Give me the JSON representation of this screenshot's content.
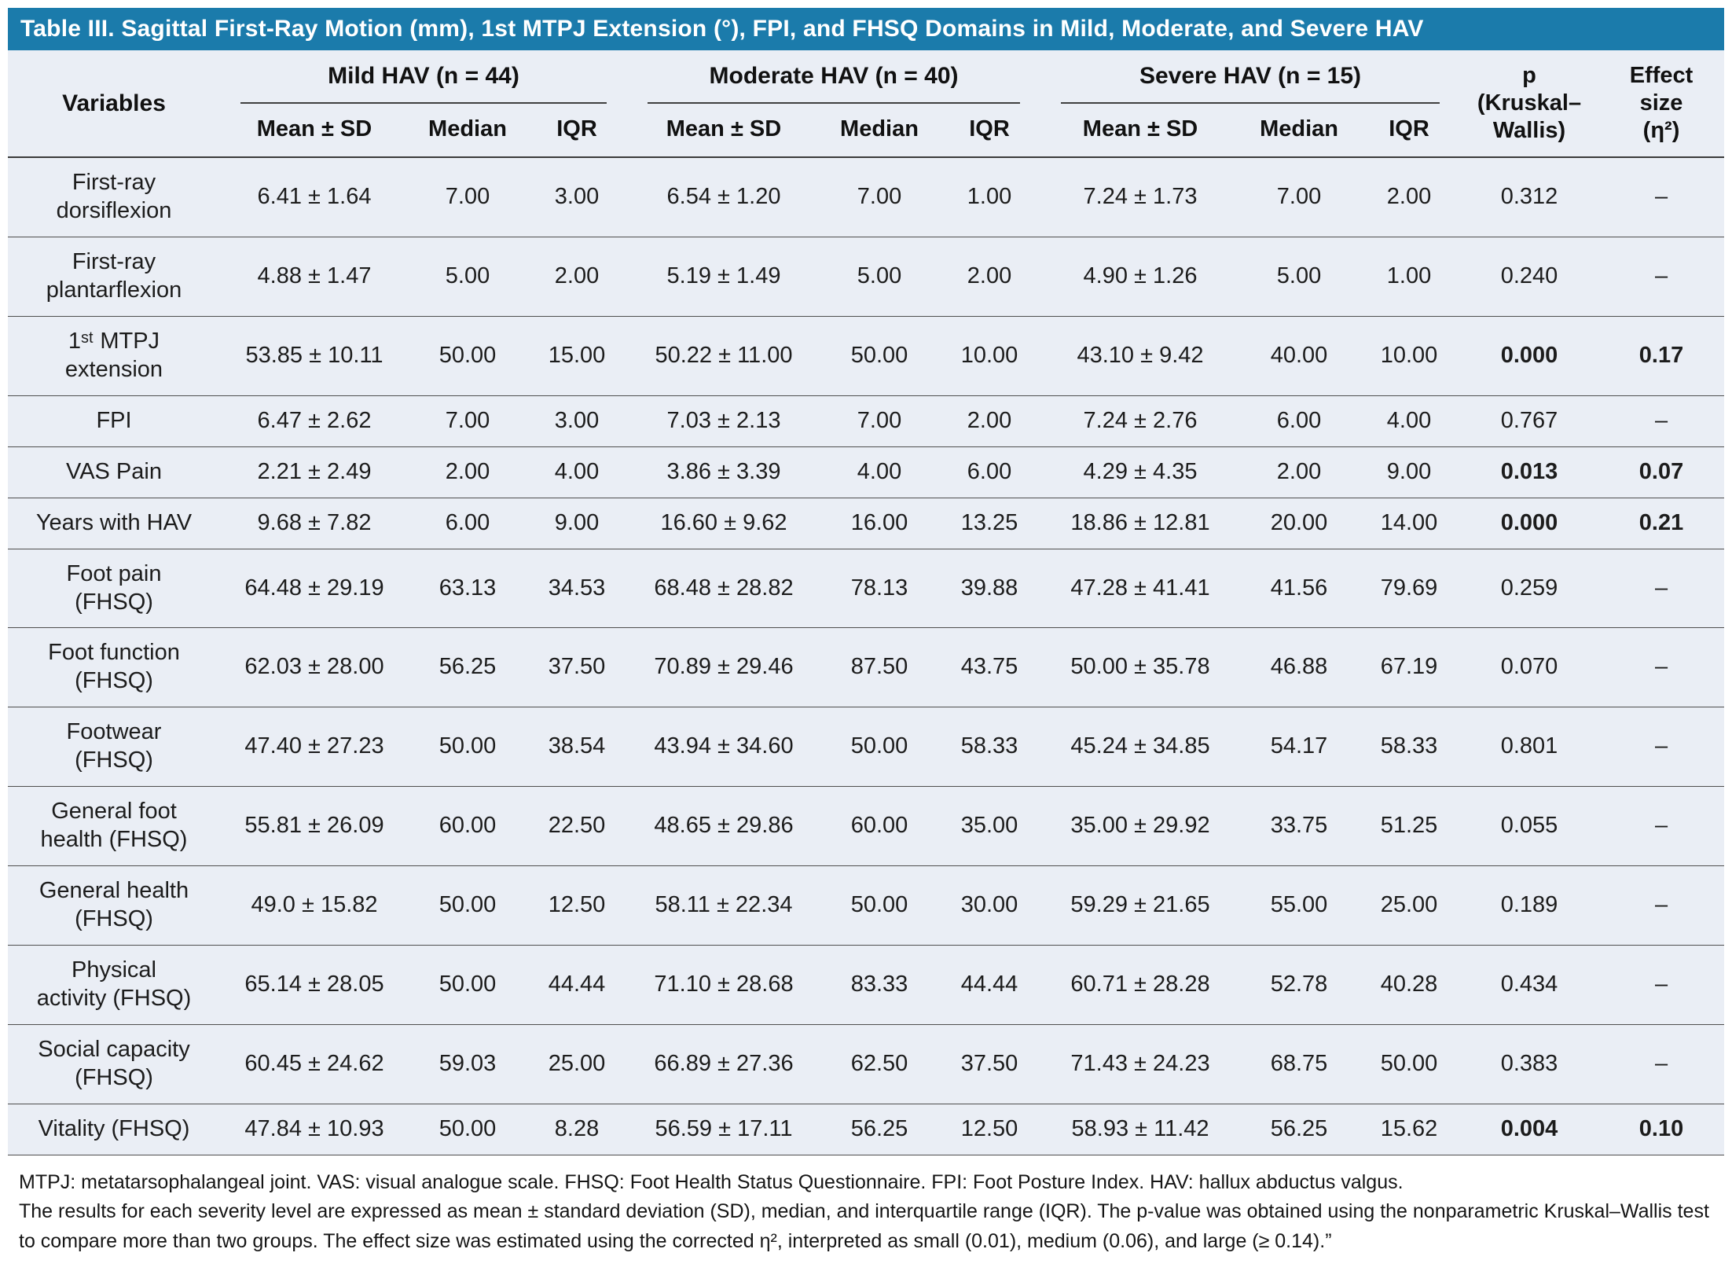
{
  "title": "Table III. Sagittal First-Ray Motion (mm), 1st MTPJ Extension (°), FPI, and FHSQ Domains in Mild, Moderate, and Severe HAV",
  "colors": {
    "header_bar": "#1b7bab",
    "table_background": "#eaeef5"
  },
  "table": {
    "variables_header": "Variables",
    "groups": [
      {
        "label": "Mild HAV (n = 44)"
      },
      {
        "label": "Moderate HAV (n = 40)"
      },
      {
        "label": "Severe HAV (n = 15)"
      }
    ],
    "sub_headers": [
      "Mean ± SD",
      "Median",
      "IQR"
    ],
    "p_header": "p\n(Kruskal–\nWallis)",
    "effect_header": "Effect\nsize\n(η²)",
    "rows": [
      {
        "variable": "First-ray\ndorsiflexion",
        "mild": [
          "6.41 ± 1.64",
          "7.00",
          "3.00"
        ],
        "moderate": [
          "6.54 ± 1.20",
          "7.00",
          "1.00"
        ],
        "severe": [
          "7.24 ± 1.73",
          "7.00",
          "2.00"
        ],
        "p": "0.312",
        "effect": "–",
        "significant": false
      },
      {
        "variable": "First-ray\nplantarflexion",
        "mild": [
          "4.88 ± 1.47",
          "5.00",
          "2.00"
        ],
        "moderate": [
          "5.19 ± 1.49",
          "5.00",
          "2.00"
        ],
        "severe": [
          "4.90 ± 1.26",
          "5.00",
          "1.00"
        ],
        "p": "0.240",
        "effect": "–",
        "significant": false
      },
      {
        "variable": "1ˢᵗ MTPJ\nextension",
        "mild": [
          "53.85 ± 10.11",
          "50.00",
          "15.00"
        ],
        "moderate": [
          "50.22 ± 11.00",
          "50.00",
          "10.00"
        ],
        "severe": [
          "43.10 ± 9.42",
          "40.00",
          "10.00"
        ],
        "p": "0.000",
        "effect": "0.17",
        "significant": true
      },
      {
        "variable": "FPI",
        "mild": [
          "6.47 ± 2.62",
          "7.00",
          "3.00"
        ],
        "moderate": [
          "7.03 ± 2.13",
          "7.00",
          "2.00"
        ],
        "severe": [
          "7.24 ± 2.76",
          "6.00",
          "4.00"
        ],
        "p": "0.767",
        "effect": "–",
        "significant": false
      },
      {
        "variable": "VAS Pain",
        "mild": [
          "2.21 ± 2.49",
          "2.00",
          "4.00"
        ],
        "moderate": [
          "3.86 ± 3.39",
          "4.00",
          "6.00"
        ],
        "severe": [
          "4.29 ± 4.35",
          "2.00",
          "9.00"
        ],
        "p": "0.013",
        "effect": "0.07",
        "significant": true
      },
      {
        "variable": "Years with HAV",
        "mild": [
          "9.68 ± 7.82",
          "6.00",
          "9.00"
        ],
        "moderate": [
          "16.60 ± 9.62",
          "16.00",
          "13.25"
        ],
        "severe": [
          "18.86 ± 12.81",
          "20.00",
          "14.00"
        ],
        "p": "0.000",
        "effect": "0.21",
        "significant": true
      },
      {
        "variable": "Foot pain\n(FHSQ)",
        "mild": [
          "64.48 ± 29.19",
          "63.13",
          "34.53"
        ],
        "moderate": [
          "68.48 ± 28.82",
          "78.13",
          "39.88"
        ],
        "severe": [
          "47.28 ± 41.41",
          "41.56",
          "79.69"
        ],
        "p": "0.259",
        "effect": "–",
        "significant": false
      },
      {
        "variable": "Foot function\n(FHSQ)",
        "mild": [
          "62.03 ± 28.00",
          "56.25",
          "37.50"
        ],
        "moderate": [
          "70.89 ± 29.46",
          "87.50",
          "43.75"
        ],
        "severe": [
          "50.00 ± 35.78",
          "46.88",
          "67.19"
        ],
        "p": "0.070",
        "effect": "–",
        "significant": false
      },
      {
        "variable": "Footwear\n(FHSQ)",
        "mild": [
          "47.40 ± 27.23",
          "50.00",
          "38.54"
        ],
        "moderate": [
          "43.94 ± 34.60",
          "50.00",
          "58.33"
        ],
        "severe": [
          "45.24 ± 34.85",
          "54.17",
          "58.33"
        ],
        "p": "0.801",
        "effect": "–",
        "significant": false
      },
      {
        "variable": "General foot\nhealth (FHSQ)",
        "mild": [
          "55.81 ± 26.09",
          "60.00",
          "22.50"
        ],
        "moderate": [
          "48.65 ± 29.86",
          "60.00",
          "35.00"
        ],
        "severe": [
          "35.00 ± 29.92",
          "33.75",
          "51.25"
        ],
        "p": "0.055",
        "effect": "–",
        "significant": false
      },
      {
        "variable": "General health\n(FHSQ)",
        "mild": [
          "49.0 ± 15.82",
          "50.00",
          "12.50"
        ],
        "moderate": [
          "58.11 ± 22.34",
          "50.00",
          "30.00"
        ],
        "severe": [
          "59.29 ± 21.65",
          "55.00",
          "25.00"
        ],
        "p": "0.189",
        "effect": "–",
        "significant": false
      },
      {
        "variable": "Physical\nactivity (FHSQ)",
        "mild": [
          "65.14 ± 28.05",
          "50.00",
          "44.44"
        ],
        "moderate": [
          "71.10 ± 28.68",
          "83.33",
          "44.44"
        ],
        "severe": [
          "60.71 ± 28.28",
          "52.78",
          "40.28"
        ],
        "p": "0.434",
        "effect": "–",
        "significant": false
      },
      {
        "variable": "Social capacity\n(FHSQ)",
        "mild": [
          "60.45 ± 24.62",
          "59.03",
          "25.00"
        ],
        "moderate": [
          "66.89 ± 27.36",
          "62.50",
          "37.50"
        ],
        "severe": [
          "71.43 ± 24.23",
          "68.75",
          "50.00"
        ],
        "p": "0.383",
        "effect": "–",
        "significant": false
      },
      {
        "variable": "Vitality (FHSQ)",
        "mild": [
          "47.84 ± 10.93",
          "50.00",
          "8.28"
        ],
        "moderate": [
          "56.59 ± 17.11",
          "56.25",
          "12.50"
        ],
        "severe": [
          "58.93 ± 11.42",
          "56.25",
          "15.62"
        ],
        "p": "0.004",
        "effect": "0.10",
        "significant": true
      }
    ]
  },
  "footnotes": [
    "MTPJ: metatarsophalangeal joint. VAS: visual analogue scale. FHSQ: Foot Health Status Questionnaire. FPI: Foot Posture Index. HAV: hallux abductus valgus.",
    "The results for each severity level are expressed as mean ± standard deviation (SD), median, and interquartile range (IQR). The p-value was obtained using the nonparametric Kruskal–Wallis test to compare more than two groups. The effect size was estimated using the corrected η², interpreted as small (0.01), medium (0.06), and large (≥ 0.14).”"
  ]
}
